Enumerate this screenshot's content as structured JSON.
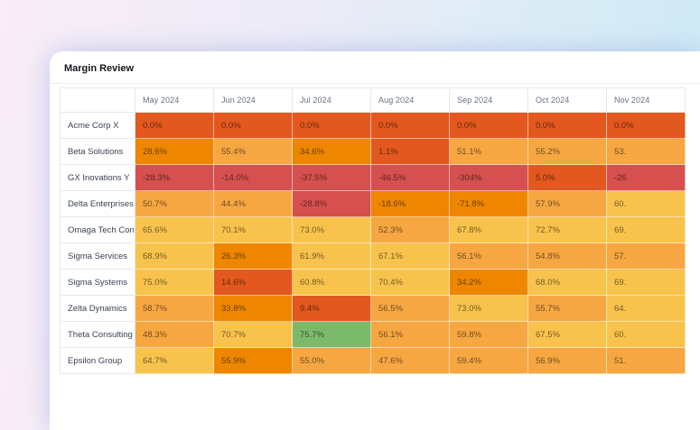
{
  "page": {
    "title": "Margin Review"
  },
  "colors": {
    "o1": "#E2581E",
    "o2": "#EE8600",
    "o3": "#F6A742",
    "o4": "#F8C34D",
    "r": "#D5504E",
    "g": "#7CBA6B"
  },
  "table": {
    "corner_label": "",
    "columns": [
      "May 2024",
      "Jun 2024",
      "Jul 2024",
      "Aug 2024",
      "Sep 2024",
      "Oct 2024",
      "Nov 2024"
    ],
    "rows": [
      {
        "name": "Acme Corp X",
        "cells": [
          {
            "v": "0.0%",
            "c": "o1"
          },
          {
            "v": "0.0%",
            "c": "o1"
          },
          {
            "v": "0.0%",
            "c": "o1"
          },
          {
            "v": "0.0%",
            "c": "o1"
          },
          {
            "v": "0.0%",
            "c": "o1"
          },
          {
            "v": "0.0%",
            "c": "o1"
          },
          {
            "v": "0.0%",
            "c": "o1"
          }
        ]
      },
      {
        "name": "Beta Solutions",
        "cells": [
          {
            "v": "28.6%",
            "c": "o2"
          },
          {
            "v": "55.4%",
            "c": "o3"
          },
          {
            "v": "34.6%",
            "c": "o2"
          },
          {
            "v": "1.1%",
            "c": "o1"
          },
          {
            "v": "51.1%",
            "c": "o3"
          },
          {
            "v": "55.2%",
            "c": "o3"
          },
          {
            "v": "53.",
            "c": "o3"
          }
        ]
      },
      {
        "name": "GX Inovations Y",
        "cells": [
          {
            "v": "-28.3%",
            "c": "r"
          },
          {
            "v": "-14.0%",
            "c": "r"
          },
          {
            "v": "-37.5%",
            "c": "r"
          },
          {
            "v": "-46.5%",
            "c": "r"
          },
          {
            "v": "-304%",
            "c": "r"
          },
          {
            "v": "5.0%",
            "c": "o1"
          },
          {
            "v": "-26",
            "c": "r"
          }
        ]
      },
      {
        "name": "Delta Enterprises",
        "cells": [
          {
            "v": "50.7%",
            "c": "o3"
          },
          {
            "v": "44.4%",
            "c": "o3"
          },
          {
            "v": "-28.8%",
            "c": "r"
          },
          {
            "v": "-18.6%",
            "c": "o2"
          },
          {
            "v": "-71.8%",
            "c": "o2"
          },
          {
            "v": "57.9%",
            "c": "o3"
          },
          {
            "v": "60.",
            "c": "o4"
          }
        ]
      },
      {
        "name": "Omaga Tech Con",
        "cells": [
          {
            "v": "65.6%",
            "c": "o4"
          },
          {
            "v": "70.1%",
            "c": "o4"
          },
          {
            "v": "73.0%",
            "c": "o4"
          },
          {
            "v": "52.3%",
            "c": "o3"
          },
          {
            "v": "67.8%",
            "c": "o4"
          },
          {
            "v": "72.7%",
            "c": "o4"
          },
          {
            "v": "69.",
            "c": "o4"
          }
        ]
      },
      {
        "name": "Sigma Services",
        "cells": [
          {
            "v": "68.9%",
            "c": "o4"
          },
          {
            "v": "26.3%",
            "c": "o2"
          },
          {
            "v": "61.9%",
            "c": "o4"
          },
          {
            "v": "67.1%",
            "c": "o4"
          },
          {
            "v": "56.1%",
            "c": "o3"
          },
          {
            "v": "54.8%",
            "c": "o3"
          },
          {
            "v": "57.",
            "c": "o3"
          }
        ]
      },
      {
        "name": "Sigma Systems",
        "cells": [
          {
            "v": "75.0%",
            "c": "o4"
          },
          {
            "v": "14.6%",
            "c": "o1"
          },
          {
            "v": "60.8%",
            "c": "o4"
          },
          {
            "v": "70.4%",
            "c": "o4"
          },
          {
            "v": "34.2%",
            "c": "o2"
          },
          {
            "v": "68.0%",
            "c": "o4"
          },
          {
            "v": "69.",
            "c": "o4"
          }
        ]
      },
      {
        "name": "Zelta Dynamics",
        "cells": [
          {
            "v": "58.7%",
            "c": "o3"
          },
          {
            "v": "33.8%",
            "c": "o2"
          },
          {
            "v": "9.4%",
            "c": "o1"
          },
          {
            "v": "56.5%",
            "c": "o3"
          },
          {
            "v": "73.0%",
            "c": "o4"
          },
          {
            "v": "55.7%",
            "c": "o3"
          },
          {
            "v": "64.",
            "c": "o4"
          }
        ]
      },
      {
        "name": "Theta Consulting",
        "cells": [
          {
            "v": "48.3%",
            "c": "o3"
          },
          {
            "v": "70.7%",
            "c": "o4"
          },
          {
            "v": "75.7%",
            "c": "g"
          },
          {
            "v": "56.1%",
            "c": "o3"
          },
          {
            "v": "59.8%",
            "c": "o3"
          },
          {
            "v": "67.5%",
            "c": "o4"
          },
          {
            "v": "60.",
            "c": "o4"
          }
        ]
      },
      {
        "name": "Epsilon Group",
        "cells": [
          {
            "v": "64.7%",
            "c": "o4"
          },
          {
            "v": "55.9%",
            "c": "o2"
          },
          {
            "v": "55.0%",
            "c": "o3"
          },
          {
            "v": "47.6%",
            "c": "o3"
          },
          {
            "v": "59.4%",
            "c": "o3"
          },
          {
            "v": "56.9%",
            "c": "o3"
          },
          {
            "v": "51.",
            "c": "o3"
          }
        ]
      }
    ]
  }
}
